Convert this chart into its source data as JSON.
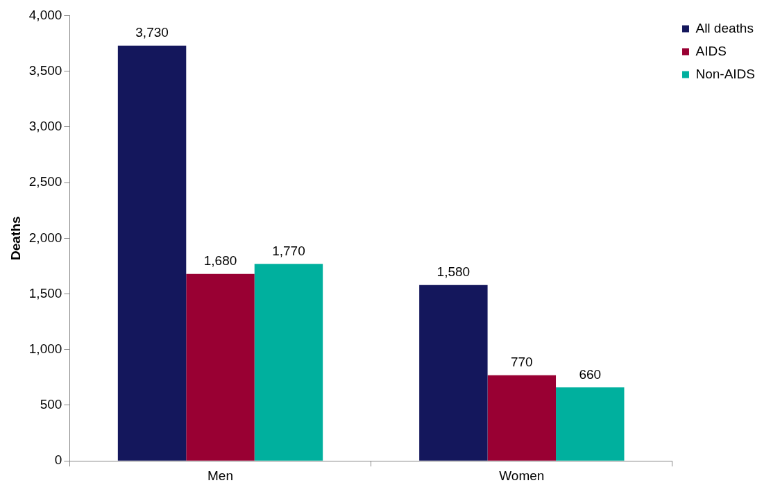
{
  "chart_data": {
    "type": "bar",
    "ylabel": "Deaths",
    "categories": [
      "Men",
      "Women"
    ],
    "series": [
      {
        "name": "All deaths",
        "color": "#14175c",
        "values": [
          3730,
          1580
        ],
        "value_labels": [
          "3,730",
          "1,580"
        ]
      },
      {
        "name": "AIDS",
        "color": "#990033",
        "values": [
          1680,
          770
        ],
        "value_labels": [
          "1,680",
          "770"
        ]
      },
      {
        "name": "Non-AIDS",
        "color": "#00b09e",
        "values": [
          1770,
          660
        ],
        "value_labels": [
          "1,770",
          "660"
        ]
      }
    ],
    "ylim": [
      0,
      4000
    ],
    "yticks": [
      0,
      500,
      {
        "value": 1000,
        "label": "1,000"
      },
      {
        "value": 1500,
        "label": "1,500"
      },
      {
        "value": 2000,
        "label": "2,000"
      },
      {
        "value": 2500,
        "label": "2,500"
      },
      {
        "value": 3000,
        "label": "3,000"
      },
      {
        "value": 3500,
        "label": "3,500"
      },
      {
        "value": 4000,
        "label": "4,000"
      }
    ],
    "legend": "top right"
  }
}
